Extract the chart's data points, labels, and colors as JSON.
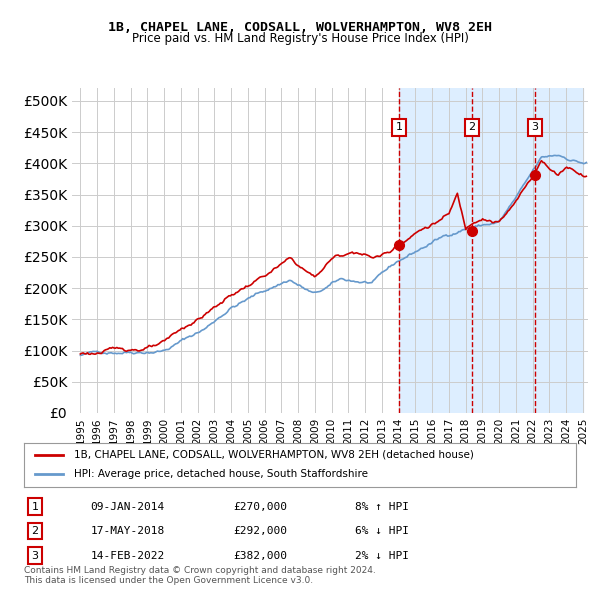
{
  "title": "1B, CHAPEL LANE, CODSALL, WOLVERHAMPTON, WV8 2EH",
  "subtitle": "Price paid vs. HM Land Registry's House Price Index (HPI)",
  "legend_line1": "1B, CHAPEL LANE, CODSALL, WOLVERHAMPTON, WV8 2EH (detached house)",
  "legend_line2": "HPI: Average price, detached house, South Staffordshire",
  "footer1": "Contains HM Land Registry data © Crown copyright and database right 2024.",
  "footer2": "This data is licensed under the Open Government Licence v3.0.",
  "transactions": [
    {
      "num": 1,
      "date": "09-JAN-2014",
      "price": 270000,
      "pct": "8%",
      "dir": "↑",
      "x_year": 2014.03
    },
    {
      "num": 2,
      "date": "17-MAY-2018",
      "price": 292000,
      "pct": "6%",
      "dir": "↓",
      "x_year": 2018.38
    },
    {
      "num": 3,
      "date": "14-FEB-2022",
      "price": 382000,
      "pct": "2%",
      "dir": "↓",
      "x_year": 2022.12
    }
  ],
  "shade_start": 2014.03,
  "shade_end": 2025.0,
  "hatch_start": 2022.12,
  "hatch_end": 2025.0,
  "ylim": [
    0,
    520000
  ],
  "xlim_start": 1994.5,
  "xlim_end": 2025.3,
  "red_color": "#cc0000",
  "blue_color": "#6699cc",
  "shade_color": "#ddeeff",
  "bg_color": "#ffffff",
  "grid_color": "#cccccc"
}
